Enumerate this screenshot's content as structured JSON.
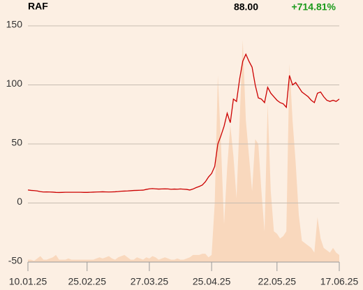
{
  "header": {
    "symbol": "RAF",
    "price": "88.00",
    "change": "+714.81%"
  },
  "chart_data": {
    "type": "line",
    "categories": [
      "10.01.25",
      null,
      null,
      null,
      null,
      null,
      null,
      null,
      null,
      null,
      null,
      null,
      null,
      null,
      null,
      null,
      null,
      null,
      null,
      "25.02.25",
      null,
      null,
      null,
      null,
      null,
      null,
      null,
      null,
      null,
      null,
      null,
      null,
      null,
      null,
      null,
      null,
      null,
      null,
      null,
      "27.03.25",
      null,
      null,
      null,
      null,
      null,
      null,
      null,
      null,
      null,
      null,
      null,
      null,
      null,
      null,
      null,
      null,
      null,
      null,
      null,
      "25.04.25",
      null,
      null,
      null,
      null,
      null,
      null,
      null,
      null,
      null,
      null,
      null,
      null,
      null,
      null,
      null,
      null,
      null,
      null,
      null,
      null,
      "22.05.25",
      null,
      null,
      null,
      null,
      null,
      null,
      null,
      null,
      null,
      null,
      null,
      null,
      null,
      null,
      null,
      null,
      null,
      null,
      null,
      "17.06.25"
    ],
    "series": [
      {
        "color": "#cc0000",
        "values": [
          11,
          10.7,
          10.5,
          10.2,
          9.6,
          9.3,
          9.4,
          9.3,
          9.2,
          9.0,
          8.9,
          9.0,
          9.1,
          9.1,
          9.1,
          9.1,
          9.1,
          9.1,
          9.0,
          9.0,
          9.1,
          9.2,
          9.3,
          9.4,
          9.5,
          9.4,
          9.3,
          9.4,
          9.5,
          9.7,
          10.0,
          10.1,
          10.2,
          10.4,
          10.6,
          10.7,
          10.8,
          10.9,
          11.5,
          12.0,
          12.2,
          12.0,
          11.8,
          11.9,
          12.0,
          11.9,
          11.6,
          11.8,
          11.7,
          11.9,
          11.7,
          11.5,
          11.0,
          11.8,
          13.0,
          14.0,
          15.2,
          18,
          22,
          25,
          31,
          50,
          57,
          65,
          76,
          68,
          88,
          86,
          105,
          120,
          126,
          120,
          115,
          100,
          89,
          88,
          85,
          98,
          93,
          90,
          87,
          85,
          84,
          81,
          108,
          100,
          102,
          98,
          94,
          92,
          90,
          87,
          85,
          93,
          94,
          90,
          87,
          86,
          87,
          86,
          88
        ]
      },
      {
        "color": "#f9d8bd",
        "axis": "y2",
        "values": [
          1,
          1,
          0.5,
          1.5,
          2.5,
          1,
          1,
          1.5,
          2,
          3,
          1,
          1,
          1,
          1.5,
          1,
          1,
          1,
          1,
          1,
          1,
          1,
          1,
          1.5,
          2,
          1.5,
          2,
          2.5,
          1.5,
          1,
          2,
          2.5,
          3,
          2,
          1,
          1,
          2,
          1.5,
          1,
          2,
          1.5,
          2.5,
          2,
          1,
          1.5,
          2,
          1.5,
          1,
          1,
          1.5,
          1,
          1,
          1.5,
          2,
          3,
          3,
          3,
          3.5,
          3.5,
          2,
          3,
          25,
          79,
          50,
          16,
          40,
          58,
          45,
          27,
          60,
          94,
          60,
          45,
          30,
          52,
          50,
          30,
          13,
          67,
          30,
          13,
          12,
          10,
          11,
          13,
          84,
          60,
          42,
          20,
          9,
          8,
          7,
          6,
          4,
          19,
          10,
          6,
          5,
          4,
          6,
          4,
          3
        ]
      }
    ],
    "ylim": [
      -50,
      150
    ],
    "yticks": [
      -50,
      0,
      50,
      100,
      150
    ],
    "y2lim": [
      0,
      100
    ],
    "grid": true
  }
}
